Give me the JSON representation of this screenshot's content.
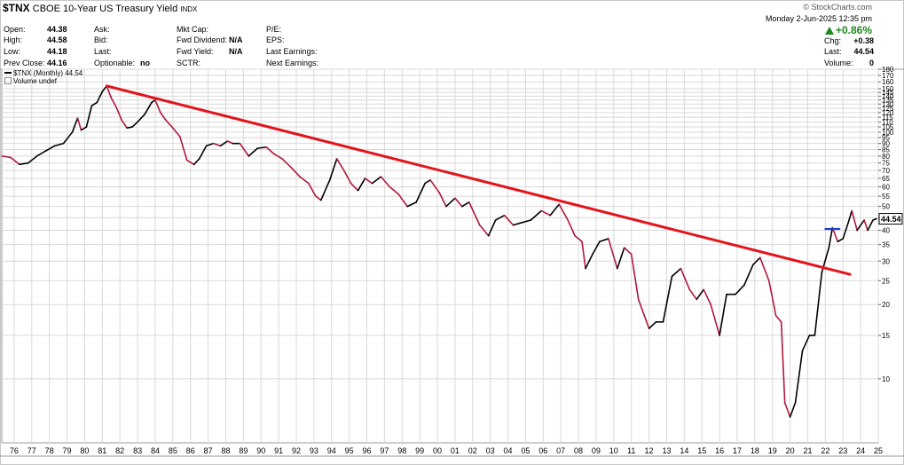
{
  "header": {
    "symbol": "$TNX",
    "name": "CBOE 10-Year US Treasury Yield",
    "exchange": "INDX",
    "brand": "© StockCharts.com",
    "date": "Monday  2-Jun-2025  12:35 pm",
    "pct_change": "+0.86%"
  },
  "quote": {
    "open_label": "Open:",
    "open": "44.38",
    "high_label": "High:",
    "high": "44.58",
    "low_label": "Low:",
    "low": "44.18",
    "prev_label": "Prev Close:",
    "prev": "44.16",
    "ask_label": "Ask:",
    "bid_label": "Bid:",
    "last_label": "Last:",
    "optionable_label": "Optionable:",
    "optionable": "no",
    "mktcap_label": "Mkt Cap:",
    "fwd_div_label": "Fwd Dividend:",
    "fwd_div": "N/A",
    "fwd_yield_label": "Fwd Yield:",
    "fwd_yield": "N/A",
    "sctr_label": "SCTR:",
    "pe_label": "P/E:",
    "eps_label": "EPS:",
    "last_earn_label": "Last Earnings:",
    "next_earn_label": "Next Earnings:",
    "chg_label": "Chg:",
    "chg": "+0.38",
    "last2_label": "Last:",
    "last2": "44.54",
    "vol_label": "Volume:",
    "vol": "0"
  },
  "legend": {
    "series": "$TNX (Monthly) 44.54",
    "volume": "Volume undef"
  },
  "colors": {
    "line_up": "#000000",
    "line_down": "#b0173a",
    "trend": "#e3141b",
    "level": "#1f3fd6",
    "grid": "#d9d9d9"
  },
  "chart_data": {
    "type": "line",
    "scale": "log",
    "ylim": [
      5.5,
      180
    ],
    "last_value_label": "44.54",
    "y_ticks": [
      10,
      15,
      20,
      25,
      30,
      35,
      40,
      45,
      50,
      55,
      60,
      65,
      70,
      75,
      80,
      85,
      90,
      95,
      100,
      105,
      110,
      115,
      120,
      125,
      130,
      135,
      140,
      145,
      150,
      160,
      170,
      180
    ],
    "y_tick_labels": [
      "10",
      "15",
      "20",
      "25",
      "30",
      "35",
      "40",
      "45",
      "50",
      "55",
      "60",
      "65",
      "70",
      "75",
      "80",
      "85",
      "90",
      "95",
      "100",
      "105",
      "110",
      "115",
      "120",
      "125",
      "130",
      "135",
      "140",
      "145",
      "150",
      "160",
      "170",
      "180"
    ],
    "x_ticks": [
      "76",
      "77",
      "78",
      "79",
      "80",
      "81",
      "82",
      "83",
      "84",
      "85",
      "86",
      "87",
      "88",
      "89",
      "90",
      "91",
      "92",
      "93",
      "94",
      "95",
      "96",
      "97",
      "98",
      "99",
      "00",
      "01",
      "02",
      "03",
      "04",
      "05",
      "06",
      "07",
      "08",
      "09",
      "10",
      "11",
      "12",
      "13",
      "14",
      "15",
      "16",
      "17",
      "18",
      "19",
      "20",
      "21",
      "22",
      "23",
      "24",
      "25"
    ],
    "x_start": 1975.8,
    "x_end": 2025.5,
    "series": [
      {
        "t": [
          1975.8,
          1976.3,
          1976.8,
          1977.3,
          1977.8,
          1978.3,
          1978.8,
          1979.3,
          1979.8,
          1980.1,
          1980.3,
          1980.6,
          1980.9,
          1981.2,
          1981.5,
          1981.75,
          1982.0,
          1982.3,
          1982.6,
          1982.9,
          1983.2,
          1983.5,
          1983.9,
          1984.3,
          1984.5,
          1984.8,
          1985.1,
          1985.5,
          1985.9,
          1986.3,
          1986.7,
          1987.0,
          1987.4,
          1987.8,
          1988.2,
          1988.6,
          1988.9,
          1989.3,
          1989.8,
          1990.3,
          1990.8,
          1991.2,
          1991.7,
          1992.2,
          1992.7,
          1993.2,
          1993.6,
          1993.9,
          1994.4,
          1994.8,
          1995.2,
          1995.6,
          1996.0,
          1996.4,
          1996.8,
          1997.3,
          1997.8,
          1998.3,
          1998.8,
          1999.3,
          1999.8,
          2000.1,
          2000.6,
          2001.0,
          2001.5,
          2001.9,
          2002.3,
          2002.9,
          2003.4,
          2003.8,
          2004.3,
          2004.8,
          2005.3,
          2005.8,
          2006.4,
          2006.9,
          2007.4,
          2007.9,
          2008.3,
          2008.7,
          2008.9,
          2009.3,
          2009.7,
          2010.2,
          2010.7,
          2011.1,
          2011.5,
          2011.9,
          2012.5,
          2012.9,
          2013.3,
          2013.8,
          2014.3,
          2014.8,
          2015.2,
          2015.6,
          2016.0,
          2016.5,
          2016.9,
          2017.4,
          2017.9,
          2018.4,
          2018.8,
          2019.3,
          2019.7,
          2020.0,
          2020.2,
          2020.5,
          2020.8,
          2021.2,
          2021.6,
          2021.9,
          2022.3,
          2022.7,
          2022.9,
          2023.2,
          2023.5,
          2023.8,
          2024.0,
          2024.3,
          2024.7,
          2024.9,
          2025.2,
          2025.4
        ],
        "values": [
          80,
          79,
          74,
          75,
          80,
          84,
          88,
          90,
          100,
          114,
          102,
          105,
          128,
          132,
          146,
          154,
          138,
          126,
          112,
          104,
          105,
          110,
          118,
          132,
          135,
          120,
          112,
          104,
          96,
          77,
          74,
          78,
          88,
          90,
          88,
          92,
          90,
          90,
          80,
          86,
          87,
          82,
          78,
          72,
          66,
          62,
          55,
          53,
          64,
          78,
          70,
          62,
          58,
          65,
          62,
          66,
          60,
          56,
          50,
          52,
          62,
          64,
          57,
          50,
          54,
          50,
          52,
          42,
          38,
          44,
          46,
          42,
          43,
          44,
          48,
          46,
          51,
          44,
          38,
          36,
          28,
          32,
          36,
          37,
          28,
          34,
          32,
          21,
          16,
          17,
          17,
          26,
          28,
          23,
          21,
          23,
          20,
          15,
          22,
          22,
          24,
          29,
          31,
          25,
          18,
          17,
          8,
          7,
          8,
          13,
          15,
          15,
          27,
          34,
          41,
          36,
          37,
          43,
          48,
          40,
          44,
          40,
          44,
          44.54
        ],
        "unit": "yield x10"
      }
    ],
    "annotations": [
      {
        "type": "trendline",
        "from": [
          1981.75,
          154
        ],
        "to": [
          2023.9,
          26.5
        ]
      },
      {
        "type": "level",
        "from": [
          2022.5,
          40.5
        ],
        "to": [
          2023.3,
          40.5
        ]
      }
    ]
  }
}
